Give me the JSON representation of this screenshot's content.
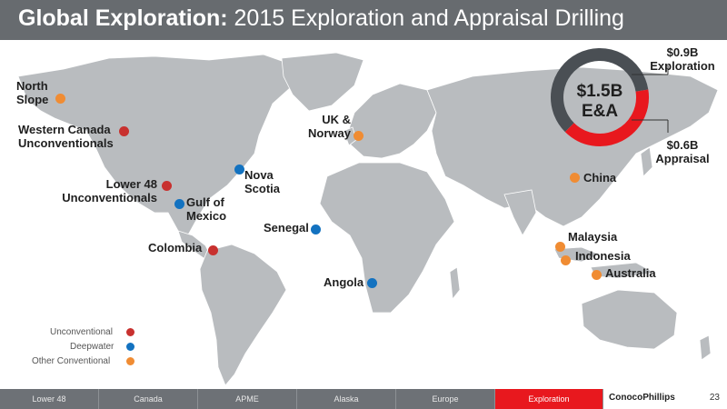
{
  "header": {
    "title_bold": "Global Exploration:",
    "title_rest": "2015 Exploration and Appraisal Drilling"
  },
  "donut": {
    "total_line1": "$1.5B",
    "total_line2": "E&A",
    "exploration_value": "$0.9B",
    "exploration_label": "Exploration",
    "appraisal_value": "$0.6B",
    "appraisal_label": "Appraisal",
    "exploration_share": 0.6,
    "appraisal_share": 0.4,
    "colors": {
      "exploration": "#4a4f54",
      "appraisal": "#e8181e"
    }
  },
  "locations": [
    {
      "name": "North\nSlope",
      "line1": "North",
      "line2": "Slope",
      "type": "Other Conventional"
    },
    {
      "line1": "Western Canada",
      "line2": "Unconventionals",
      "type": "Unconventional"
    },
    {
      "line1": "Lower 48",
      "line2": "Unconventionals",
      "type": "Unconventional"
    },
    {
      "line1": "Gulf of",
      "line2": "Mexico",
      "type": "Deepwater"
    },
    {
      "line1": "Nova",
      "line2": "Scotia",
      "type": "Deepwater"
    },
    {
      "line1": "Colombia",
      "type": "Unconventional"
    },
    {
      "line1": "Senegal",
      "type": "Deepwater"
    },
    {
      "line1": "Angola",
      "type": "Deepwater"
    },
    {
      "line1": "UK &",
      "line2": "Norway",
      "type": "Other Conventional"
    },
    {
      "line1": "China",
      "type": "Other Conventional"
    },
    {
      "line1": "Malaysia",
      "type": "Other Conventional"
    },
    {
      "line1": "Indonesia",
      "type": "Other Conventional"
    },
    {
      "line1": "Australia",
      "type": "Other Conventional"
    }
  ],
  "legend": [
    {
      "label": "Unconventional",
      "color": "#c8312f"
    },
    {
      "label": "Deepwater",
      "color": "#1372c0"
    },
    {
      "label": "Other Conventional",
      "color": "#f08c33"
    }
  ],
  "footer": {
    "tabs": [
      "Lower 48",
      "Canada",
      "APME",
      "Alaska",
      "Europe",
      "Exploration"
    ],
    "active_tab": "Exploration",
    "logo": "ConocoPhillips",
    "page_number": "23"
  }
}
